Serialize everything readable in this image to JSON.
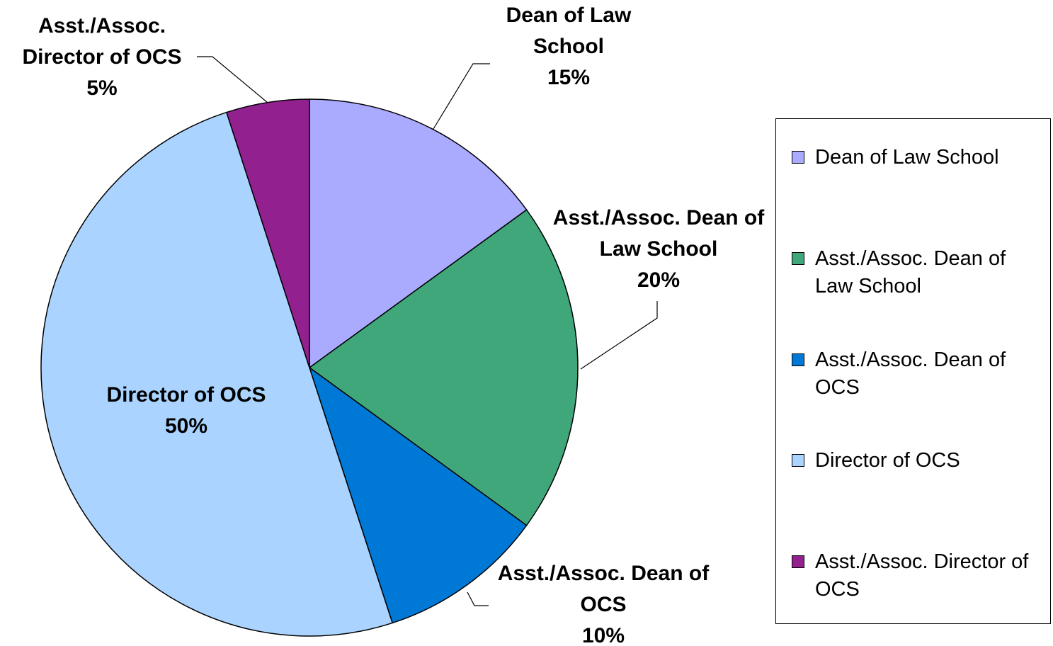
{
  "chart_data": {
    "type": "pie",
    "categories": [
      "Dean of Law School",
      "Asst./Assoc. Dean of Law School",
      "Asst./Assoc. Dean of OCS",
      "Director of OCS",
      "Asst./Assoc. Director of OCS"
    ],
    "values": [
      15,
      20,
      10,
      50,
      5
    ],
    "value_labels": [
      "15%",
      "20%",
      "10%",
      "50%",
      "5%"
    ],
    "colors": [
      "#aaaaff",
      "#3fa77a",
      "#0079d6",
      "#aad4ff",
      "#93208f"
    ],
    "legend": "right"
  }
}
